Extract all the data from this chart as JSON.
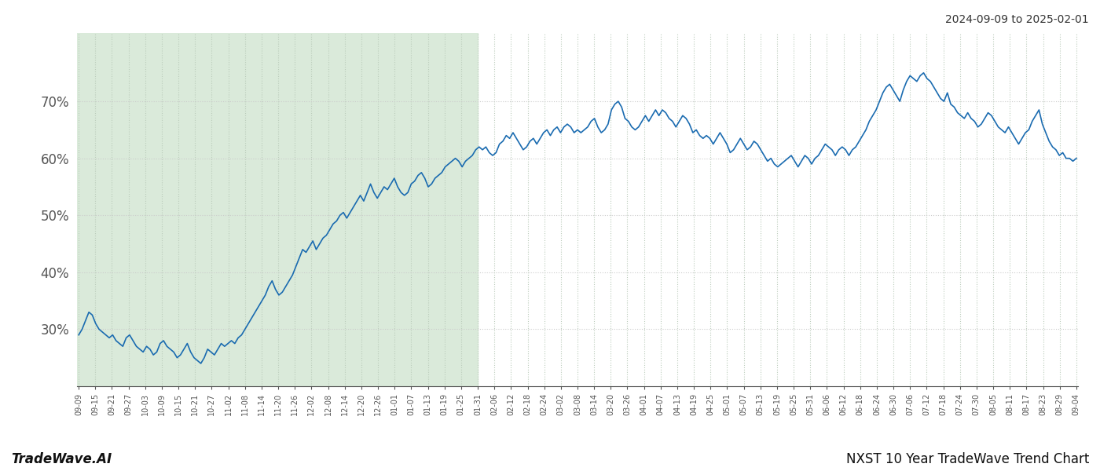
{
  "title_right": "2024-09-09 to 2025-02-01",
  "footer_left": "TradeWave.AI",
  "footer_right": "NXST 10 Year TradeWave Trend Chart",
  "shaded_color": "#daeada",
  "line_color": "#1a6bb0",
  "line_width": 1.2,
  "ylim": [
    20,
    82
  ],
  "yticks": [
    30,
    40,
    50,
    60,
    70
  ],
  "background_color": "#ffffff",
  "grid_color": "#bbccbb",
  "grid_color2": "#cccccc",
  "x_labels": [
    "09-09",
    "09-15",
    "09-21",
    "09-27",
    "10-03",
    "10-09",
    "10-15",
    "10-21",
    "10-27",
    "11-02",
    "11-08",
    "11-14",
    "11-20",
    "11-26",
    "12-02",
    "12-08",
    "12-14",
    "12-20",
    "12-26",
    "01-01",
    "01-07",
    "01-13",
    "01-19",
    "01-25",
    "01-31",
    "02-06",
    "02-12",
    "02-18",
    "02-24",
    "03-02",
    "03-08",
    "03-14",
    "03-20",
    "03-26",
    "04-01",
    "04-07",
    "04-13",
    "04-19",
    "04-25",
    "05-01",
    "05-07",
    "05-13",
    "05-19",
    "05-25",
    "05-31",
    "06-06",
    "06-12",
    "06-18",
    "06-24",
    "06-30",
    "07-06",
    "07-12",
    "07-18",
    "07-24",
    "07-30",
    "08-05",
    "08-11",
    "08-17",
    "08-23",
    "08-29",
    "09-04"
  ],
  "shade_end_label": "01-31",
  "y_values": [
    29.0,
    30.0,
    31.5,
    33.0,
    32.5,
    31.0,
    30.0,
    29.5,
    29.0,
    28.5,
    29.0,
    28.0,
    27.5,
    27.0,
    28.5,
    29.0,
    28.0,
    27.0,
    26.5,
    26.0,
    27.0,
    26.5,
    25.5,
    26.0,
    27.5,
    28.0,
    27.0,
    26.5,
    26.0,
    25.0,
    25.5,
    26.5,
    27.5,
    26.0,
    25.0,
    24.5,
    24.0,
    25.0,
    26.5,
    26.0,
    25.5,
    26.5,
    27.5,
    27.0,
    27.5,
    28.0,
    27.5,
    28.5,
    29.0,
    30.0,
    31.0,
    32.0,
    33.0,
    34.0,
    35.0,
    36.0,
    37.5,
    38.5,
    37.0,
    36.0,
    36.5,
    37.5,
    38.5,
    39.5,
    41.0,
    42.5,
    44.0,
    43.5,
    44.5,
    45.5,
    44.0,
    45.0,
    46.0,
    46.5,
    47.5,
    48.5,
    49.0,
    50.0,
    50.5,
    49.5,
    50.5,
    51.5,
    52.5,
    53.5,
    52.5,
    54.0,
    55.5,
    54.0,
    53.0,
    54.0,
    55.0,
    54.5,
    55.5,
    56.5,
    55.0,
    54.0,
    53.5,
    54.0,
    55.5,
    56.0,
    57.0,
    57.5,
    56.5,
    55.0,
    55.5,
    56.5,
    57.0,
    57.5,
    58.5,
    59.0,
    59.5,
    60.0,
    59.5,
    58.5,
    59.5,
    60.0,
    60.5,
    61.5,
    62.0,
    61.5,
    62.0,
    61.0,
    60.5,
    61.0,
    62.5,
    63.0,
    64.0,
    63.5,
    64.5,
    63.5,
    62.5,
    61.5,
    62.0,
    63.0,
    63.5,
    62.5,
    63.5,
    64.5,
    65.0,
    64.0,
    65.0,
    65.5,
    64.5,
    65.5,
    66.0,
    65.5,
    64.5,
    65.0,
    64.5,
    65.0,
    65.5,
    66.5,
    67.0,
    65.5,
    64.5,
    65.0,
    66.0,
    68.5,
    69.5,
    70.0,
    69.0,
    67.0,
    66.5,
    65.5,
    65.0,
    65.5,
    66.5,
    67.5,
    66.5,
    67.5,
    68.5,
    67.5,
    68.5,
    68.0,
    67.0,
    66.5,
    65.5,
    66.5,
    67.5,
    67.0,
    66.0,
    64.5,
    65.0,
    64.0,
    63.5,
    64.0,
    63.5,
    62.5,
    63.5,
    64.5,
    63.5,
    62.5,
    61.0,
    61.5,
    62.5,
    63.5,
    62.5,
    61.5,
    62.0,
    63.0,
    62.5,
    61.5,
    60.5,
    59.5,
    60.0,
    59.0,
    58.5,
    59.0,
    59.5,
    60.0,
    60.5,
    59.5,
    58.5,
    59.5,
    60.5,
    60.0,
    59.0,
    60.0,
    60.5,
    61.5,
    62.5,
    62.0,
    61.5,
    60.5,
    61.5,
    62.0,
    61.5,
    60.5,
    61.5,
    62.0,
    63.0,
    64.0,
    65.0,
    66.5,
    67.5,
    68.5,
    70.0,
    71.5,
    72.5,
    73.0,
    72.0,
    71.0,
    70.0,
    72.0,
    73.5,
    74.5,
    74.0,
    73.5,
    74.5,
    75.0,
    74.0,
    73.5,
    72.5,
    71.5,
    70.5,
    70.0,
    71.5,
    69.5,
    69.0,
    68.0,
    67.5,
    67.0,
    68.0,
    67.0,
    66.5,
    65.5,
    66.0,
    67.0,
    68.0,
    67.5,
    66.5,
    65.5,
    65.0,
    64.5,
    65.5,
    64.5,
    63.5,
    62.5,
    63.5,
    64.5,
    65.0,
    66.5,
    67.5,
    68.5,
    66.0,
    64.5,
    63.0,
    62.0,
    61.5,
    60.5,
    61.0,
    60.0,
    60.0,
    59.5,
    60.0
  ]
}
